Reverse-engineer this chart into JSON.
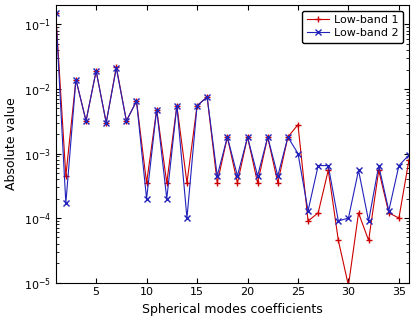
{
  "title": "",
  "xlabel": "Spherical modes coefficients",
  "ylabel": "Absolute value",
  "xlim": [
    1,
    36
  ],
  "ylim": [
    1e-05,
    0.2
  ],
  "legend": [
    "Low-band 1",
    "Low-band 2"
  ],
  "color_lb1": "#cc0000",
  "color_lb2": "#2222bb",
  "lb1_x": [
    1,
    2,
    3,
    4,
    5,
    6,
    7,
    8,
    9,
    10,
    11,
    12,
    13,
    14,
    15,
    16,
    17,
    18,
    19,
    20,
    21,
    22,
    23,
    24,
    25,
    26,
    27,
    28,
    29,
    30,
    31,
    32,
    33,
    34,
    35,
    36
  ],
  "lb1_y": [
    0.15,
    0.00045,
    0.014,
    0.0032,
    0.019,
    0.003,
    0.022,
    0.0032,
    0.0065,
    0.00035,
    0.0048,
    0.00035,
    0.0055,
    0.00035,
    0.0055,
    0.0075,
    0.00035,
    0.0018,
    0.00035,
    0.0018,
    0.00035,
    0.0018,
    0.00035,
    0.0018,
    0.0028,
    9e-05,
    0.00012,
    0.00055,
    4.5e-05,
    9e-06,
    0.00012,
    4.5e-05,
    0.00055,
    0.00012,
    0.0001,
    0.0008
  ],
  "lb2_x": [
    1,
    2,
    3,
    4,
    5,
    6,
    7,
    8,
    9,
    10,
    11,
    12,
    13,
    14,
    15,
    16,
    17,
    18,
    19,
    20,
    21,
    22,
    23,
    24,
    25,
    26,
    27,
    28,
    29,
    30,
    31,
    32,
    33,
    34,
    35,
    36
  ],
  "lb2_y": [
    0.15,
    0.00017,
    0.014,
    0.0032,
    0.019,
    0.003,
    0.021,
    0.0032,
    0.0065,
    0.0002,
    0.0048,
    0.0002,
    0.0055,
    0.0001,
    0.0055,
    0.0075,
    0.00045,
    0.0018,
    0.00045,
    0.0018,
    0.00045,
    0.0018,
    0.00045,
    0.0018,
    0.001,
    0.00013,
    0.00065,
    0.00065,
    9e-05,
    0.0001,
    0.00055,
    9e-05,
    0.00065,
    0.00013,
    0.00065,
    0.00095
  ]
}
